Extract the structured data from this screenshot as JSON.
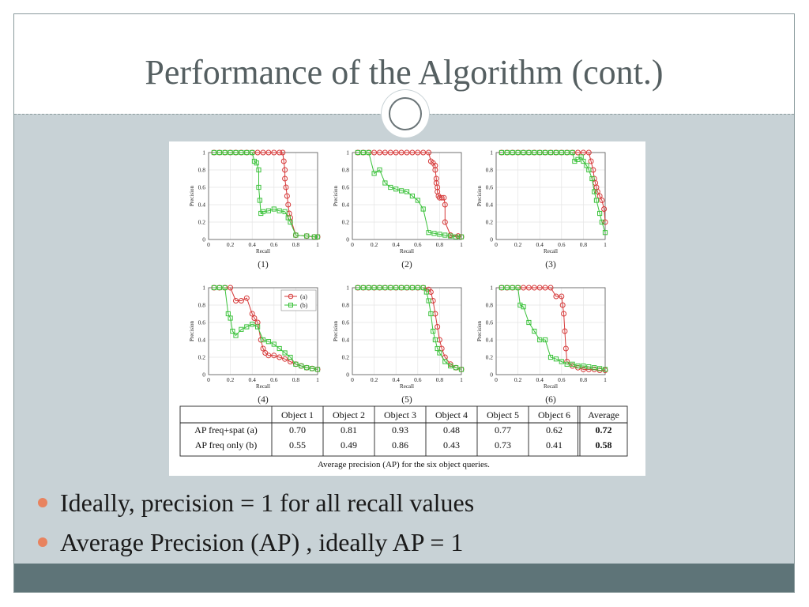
{
  "slide": {
    "title": "Performance of the Algorithm (cont.)",
    "bullets": [
      "Ideally, precision = 1 for all recall values",
      "Average Precision (AP) , ideally AP = 1"
    ]
  },
  "colors": {
    "series_a": "#d63a3a",
    "series_b": "#3bc23b",
    "bullet": "#e8835f",
    "footer": "#5e7478",
    "background": "#c8d2d6"
  },
  "chart_data": [
    {
      "type": "line",
      "caption": "(1)",
      "xlabel": "Recall",
      "ylabel": "Precision",
      "xlim": [
        0,
        1
      ],
      "ylim": [
        0,
        1
      ],
      "xticks": [
        0,
        0.2,
        0.4,
        0.6,
        0.8,
        1
      ],
      "xtick_labels": [
        "0",
        "0.2",
        "0.4",
        "0.6",
        "0.8",
        "1"
      ],
      "yticks": [
        0,
        0.2,
        0.4,
        0.6,
        0.8,
        1
      ],
      "ytick_labels": [
        "0",
        "0.2",
        "0.4",
        "0.6",
        "0.8",
        "1"
      ],
      "series": [
        {
          "key": "a",
          "x": [
            0.05,
            0.1,
            0.15,
            0.2,
            0.25,
            0.3,
            0.35,
            0.4,
            0.45,
            0.5,
            0.55,
            0.6,
            0.65,
            0.68,
            0.69,
            0.7,
            0.7,
            0.71,
            0.72,
            0.73,
            0.74,
            0.75,
            0.8,
            0.9,
            0.97,
            1.0
          ],
          "y": [
            1,
            1,
            1,
            1,
            1,
            1,
            1,
            1,
            1,
            1,
            1,
            1,
            1,
            1,
            0.9,
            0.8,
            0.7,
            0.6,
            0.5,
            0.4,
            0.3,
            0.25,
            0.05,
            0.04,
            0.03,
            0.03
          ]
        },
        {
          "key": "b",
          "x": [
            0.05,
            0.1,
            0.15,
            0.2,
            0.25,
            0.3,
            0.35,
            0.4,
            0.42,
            0.44,
            0.46,
            0.46,
            0.47,
            0.48,
            0.5,
            0.55,
            0.6,
            0.65,
            0.7,
            0.73,
            0.75,
            0.8,
            0.9,
            0.97,
            1.0
          ],
          "y": [
            1,
            1,
            1,
            1,
            1,
            1,
            1,
            1,
            0.9,
            0.88,
            0.8,
            0.6,
            0.45,
            0.3,
            0.32,
            0.33,
            0.35,
            0.33,
            0.32,
            0.25,
            0.2,
            0.05,
            0.04,
            0.03,
            0.03
          ]
        }
      ]
    },
    {
      "type": "line",
      "caption": "(2)",
      "xlabel": "Recall",
      "ylabel": "Precision",
      "xlim": [
        0,
        1
      ],
      "ylim": [
        0,
        1
      ],
      "xticks": [
        0,
        0.2,
        0.4,
        0.6,
        0.8,
        1
      ],
      "xtick_labels": [
        "0",
        "0.2",
        "0.4",
        "0.6",
        "0.8",
        "1"
      ],
      "yticks": [
        0,
        0.2,
        0.4,
        0.6,
        0.8,
        1
      ],
      "ytick_labels": [
        "0",
        "0.2",
        "0.4",
        "0.6",
        "0.8",
        "1"
      ],
      "series": [
        {
          "key": "a",
          "x": [
            0.05,
            0.1,
            0.15,
            0.2,
            0.25,
            0.3,
            0.35,
            0.4,
            0.45,
            0.5,
            0.55,
            0.6,
            0.65,
            0.7,
            0.72,
            0.74,
            0.76,
            0.76,
            0.77,
            0.77,
            0.78,
            0.78,
            0.79,
            0.8,
            0.82,
            0.84,
            0.85,
            0.85,
            0.9,
            0.97,
            1.0
          ],
          "y": [
            1,
            1,
            1,
            1,
            1,
            1,
            1,
            1,
            1,
            1,
            1,
            1,
            1,
            1,
            0.9,
            0.88,
            0.85,
            0.8,
            0.7,
            0.65,
            0.6,
            0.55,
            0.5,
            0.48,
            0.48,
            0.48,
            0.4,
            0.2,
            0.05,
            0.04,
            0.03
          ]
        },
        {
          "key": "b",
          "x": [
            0.05,
            0.1,
            0.15,
            0.2,
            0.25,
            0.3,
            0.35,
            0.4,
            0.45,
            0.5,
            0.55,
            0.6,
            0.65,
            0.7,
            0.75,
            0.8,
            0.85,
            0.9,
            0.95,
            1.0
          ],
          "y": [
            1,
            1,
            1,
            0.76,
            0.8,
            0.65,
            0.6,
            0.58,
            0.56,
            0.55,
            0.5,
            0.45,
            0.35,
            0.08,
            0.07,
            0.06,
            0.05,
            0.04,
            0.03,
            0.03
          ]
        }
      ]
    },
    {
      "type": "line",
      "caption": "(3)",
      "xlabel": "Recall",
      "ylabel": "Precision",
      "xlim": [
        0,
        1
      ],
      "ylim": [
        0,
        1
      ],
      "xticks": [
        0,
        0.2,
        0.4,
        0.6,
        0.8,
        1
      ],
      "xtick_labels": [
        "0",
        "0.2",
        "0.4",
        "0.6",
        "0.8",
        "1"
      ],
      "yticks": [
        0,
        0.2,
        0.4,
        0.6,
        0.8,
        1
      ],
      "ytick_labels": [
        "0",
        "0.2",
        "0.4",
        "0.6",
        "0.8",
        "1"
      ],
      "series": [
        {
          "key": "a",
          "x": [
            0.05,
            0.1,
            0.15,
            0.2,
            0.25,
            0.3,
            0.35,
            0.4,
            0.45,
            0.5,
            0.55,
            0.6,
            0.65,
            0.7,
            0.75,
            0.8,
            0.85,
            0.87,
            0.89,
            0.9,
            0.91,
            0.92,
            0.93,
            0.95,
            0.97,
            0.99,
            1.0
          ],
          "y": [
            1,
            1,
            1,
            1,
            1,
            1,
            1,
            1,
            1,
            1,
            1,
            1,
            1,
            1,
            1,
            1,
            1,
            0.9,
            0.8,
            0.7,
            0.65,
            0.6,
            0.55,
            0.5,
            0.45,
            0.35,
            0.2
          ]
        },
        {
          "key": "b",
          "x": [
            0.05,
            0.1,
            0.15,
            0.2,
            0.25,
            0.3,
            0.35,
            0.4,
            0.45,
            0.5,
            0.55,
            0.6,
            0.65,
            0.7,
            0.72,
            0.75,
            0.78,
            0.8,
            0.83,
            0.85,
            0.88,
            0.9,
            0.92,
            0.95,
            0.97,
            1.0
          ],
          "y": [
            1,
            1,
            1,
            1,
            1,
            1,
            1,
            1,
            1,
            1,
            1,
            1,
            1,
            1,
            0.9,
            0.92,
            0.95,
            0.9,
            0.85,
            0.8,
            0.7,
            0.55,
            0.45,
            0.3,
            0.2,
            0.08
          ]
        }
      ]
    },
    {
      "type": "line",
      "caption": "(4)",
      "xlabel": "Recall",
      "ylabel": "Precision",
      "xlim": [
        0,
        1
      ],
      "ylim": [
        0,
        1
      ],
      "xticks": [
        0,
        0.2,
        0.4,
        0.6,
        0.8,
        1
      ],
      "xtick_labels": [
        "0",
        "0.2",
        "0.4",
        "0.6",
        "0.8",
        "1"
      ],
      "yticks": [
        0,
        0.2,
        0.4,
        0.6,
        0.8,
        1
      ],
      "ytick_labels": [
        "0",
        "0.2",
        "0.4",
        "0.6",
        "0.8",
        "1"
      ],
      "legend": {
        "entries": [
          "(a)",
          "(b)"
        ],
        "position": "top-right"
      },
      "series": [
        {
          "key": "a",
          "x": [
            0.05,
            0.1,
            0.15,
            0.2,
            0.25,
            0.3,
            0.35,
            0.4,
            0.42,
            0.45,
            0.48,
            0.5,
            0.52,
            0.55,
            0.6,
            0.65,
            0.7,
            0.75,
            0.8,
            0.85,
            0.9,
            0.95,
            1.0
          ],
          "y": [
            1,
            1,
            1,
            1,
            0.85,
            0.85,
            0.88,
            0.7,
            0.65,
            0.6,
            0.4,
            0.3,
            0.25,
            0.22,
            0.22,
            0.2,
            0.18,
            0.15,
            0.12,
            0.1,
            0.08,
            0.07,
            0.06
          ]
        },
        {
          "key": "b",
          "x": [
            0.05,
            0.1,
            0.15,
            0.18,
            0.2,
            0.22,
            0.25,
            0.3,
            0.35,
            0.4,
            0.45,
            0.5,
            0.55,
            0.6,
            0.65,
            0.7,
            0.75,
            0.8,
            0.85,
            0.9,
            0.95,
            1.0
          ],
          "y": [
            1,
            1,
            1,
            0.7,
            0.65,
            0.5,
            0.45,
            0.52,
            0.55,
            0.58,
            0.55,
            0.4,
            0.38,
            0.35,
            0.3,
            0.25,
            0.2,
            0.12,
            0.1,
            0.08,
            0.07,
            0.06
          ]
        }
      ]
    },
    {
      "type": "line",
      "caption": "(5)",
      "xlabel": "Recall",
      "ylabel": "Precision",
      "xlim": [
        0,
        1
      ],
      "ylim": [
        0,
        1
      ],
      "xticks": [
        0,
        0.2,
        0.4,
        0.6,
        0.8,
        1
      ],
      "xtick_labels": [
        "0",
        "0.2",
        "0.4",
        "0.6",
        "0.8",
        "1"
      ],
      "yticks": [
        0,
        0.2,
        0.4,
        0.6,
        0.8,
        1
      ],
      "ytick_labels": [
        "0",
        "0.2",
        "0.4",
        "0.6",
        "0.8",
        "1"
      ],
      "series": [
        {
          "key": "a",
          "x": [
            0.05,
            0.1,
            0.15,
            0.2,
            0.25,
            0.3,
            0.35,
            0.4,
            0.45,
            0.5,
            0.55,
            0.6,
            0.65,
            0.7,
            0.72,
            0.74,
            0.76,
            0.78,
            0.8,
            0.82,
            0.85,
            0.9,
            0.95,
            1.0
          ],
          "y": [
            1,
            1,
            1,
            1,
            1,
            1,
            1,
            1,
            1,
            1,
            1,
            1,
            1,
            0.98,
            0.95,
            0.85,
            0.7,
            0.55,
            0.4,
            0.3,
            0.2,
            0.12,
            0.08,
            0.06
          ]
        },
        {
          "key": "b",
          "x": [
            0.05,
            0.1,
            0.15,
            0.2,
            0.25,
            0.3,
            0.35,
            0.4,
            0.45,
            0.5,
            0.55,
            0.6,
            0.65,
            0.68,
            0.7,
            0.72,
            0.74,
            0.76,
            0.78,
            0.8,
            0.85,
            0.9,
            0.95,
            1.0
          ],
          "y": [
            1,
            1,
            1,
            1,
            1,
            1,
            1,
            1,
            1,
            1,
            1,
            1,
            1,
            0.95,
            0.85,
            0.7,
            0.5,
            0.4,
            0.3,
            0.25,
            0.15,
            0.1,
            0.08,
            0.06
          ]
        }
      ]
    },
    {
      "type": "line",
      "caption": "(6)",
      "xlabel": "Recall",
      "ylabel": "Precision",
      "xlim": [
        0,
        1
      ],
      "ylim": [
        0,
        1
      ],
      "xticks": [
        0,
        0.2,
        0.4,
        0.6,
        0.8,
        1
      ],
      "xtick_labels": [
        "0",
        "0.2",
        "0.4",
        "0.6",
        "0.8",
        "1"
      ],
      "yticks": [
        0,
        0.2,
        0.4,
        0.6,
        0.8,
        1
      ],
      "ytick_labels": [
        "0",
        "0.2",
        "0.4",
        "0.6",
        "0.8",
        "1"
      ],
      "series": [
        {
          "key": "a",
          "x": [
            0.05,
            0.1,
            0.15,
            0.2,
            0.25,
            0.3,
            0.35,
            0.4,
            0.45,
            0.5,
            0.55,
            0.6,
            0.61,
            0.62,
            0.63,
            0.64,
            0.65,
            0.7,
            0.75,
            0.8,
            0.85,
            0.9,
            0.95,
            1.0
          ],
          "y": [
            1,
            1,
            1,
            1,
            1,
            1,
            1,
            1,
            1,
            1,
            0.9,
            0.9,
            0.8,
            0.7,
            0.5,
            0.3,
            0.15,
            0.1,
            0.08,
            0.06,
            0.06,
            0.06,
            0.05,
            0.05
          ]
        },
        {
          "key": "b",
          "x": [
            0.05,
            0.1,
            0.15,
            0.2,
            0.22,
            0.25,
            0.3,
            0.35,
            0.4,
            0.45,
            0.5,
            0.55,
            0.6,
            0.65,
            0.7,
            0.75,
            0.8,
            0.85,
            0.9,
            0.95,
            1.0
          ],
          "y": [
            1,
            1,
            1,
            1,
            0.8,
            0.78,
            0.6,
            0.5,
            0.4,
            0.4,
            0.2,
            0.18,
            0.15,
            0.12,
            0.12,
            0.1,
            0.1,
            0.09,
            0.08,
            0.07,
            0.06
          ]
        }
      ]
    }
  ],
  "ap_table": {
    "headers": [
      "",
      "Object 1",
      "Object 2",
      "Object 3",
      "Object 4",
      "Object 5",
      "Object 6",
      "Average"
    ],
    "rows": [
      [
        "AP freq+spat (a)",
        "0.70",
        "0.81",
        "0.93",
        "0.48",
        "0.77",
        "0.62",
        "0.72"
      ],
      [
        "AP freq only (b)",
        "0.55",
        "0.49",
        "0.86",
        "0.43",
        "0.73",
        "0.41",
        "0.58"
      ]
    ],
    "caption": "Average precision (AP) for the six object queries."
  }
}
